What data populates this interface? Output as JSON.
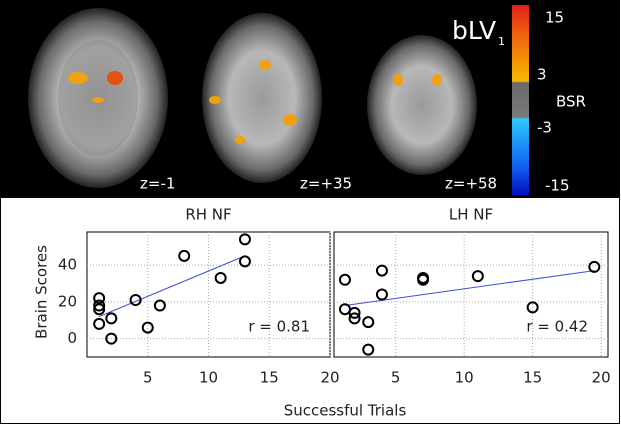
{
  "brain_panel": {
    "label": "bLV",
    "label_sub": "1",
    "slices": [
      "z=-1",
      "z=+35",
      "z=+58"
    ],
    "colorbar": {
      "title": "BSR",
      "ticks": [
        15,
        3,
        -3,
        -15
      ]
    }
  },
  "shared": {
    "xlabel": "Successful Trials",
    "ylabel": "Brain Scores"
  },
  "chart_data": [
    {
      "type": "scatter",
      "title": "RH NF",
      "annotation": "r = 0.81",
      "x": [
        1,
        1,
        1,
        1,
        2,
        2,
        4,
        5,
        6,
        8,
        11,
        13,
        13
      ],
      "y": [
        22,
        18,
        16,
        8,
        11,
        0,
        21,
        6,
        18,
        45,
        33,
        54,
        42
      ],
      "fit": {
        "x": [
          1,
          13
        ],
        "y": [
          12,
          45
        ],
        "color": "#3b4fd8"
      },
      "xlim": [
        0,
        20
      ],
      "ylim": [
        -10,
        58
      ],
      "xticks": [
        5,
        10,
        15,
        20
      ],
      "yticks": [
        0,
        20,
        40
      ],
      "ytick_labels": true,
      "grid": true
    },
    {
      "type": "scatter",
      "title": "LH NF",
      "annotation": "r = 0.42",
      "x": [
        1.3,
        1.3,
        2,
        2,
        3,
        3,
        4,
        4,
        7,
        7,
        11,
        15,
        19.5
      ],
      "y": [
        32,
        16,
        14,
        11,
        9,
        -6,
        37,
        24,
        33,
        32,
        34,
        17,
        39
      ],
      "fit": {
        "x": [
          1.3,
          19.5
        ],
        "y": [
          18,
          37
        ],
        "color": "#3b4fd8"
      },
      "xlim": [
        0.5,
        20.5
      ],
      "ylim": [
        -10,
        58
      ],
      "xticks": [
        5,
        10,
        15,
        20
      ],
      "yticks": [
        0,
        20,
        40
      ],
      "ytick_labels": false,
      "grid": true
    }
  ]
}
